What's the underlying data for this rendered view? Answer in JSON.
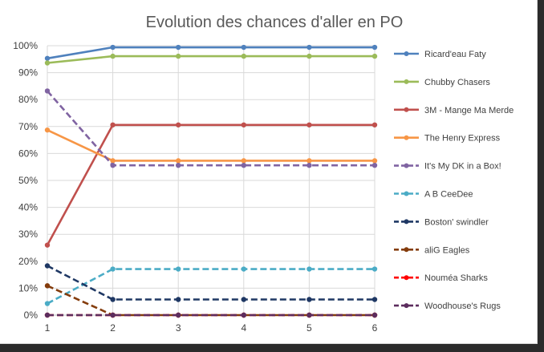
{
  "chart_data": {
    "type": "line",
    "title": "Evolution des chances d'aller en PO",
    "xlabel": "",
    "ylabel": "",
    "x": [
      1,
      2,
      3,
      4,
      5,
      6
    ],
    "x_tick_labels": [
      "1",
      "2",
      "3",
      "4",
      "5",
      "6"
    ],
    "ylim": [
      0,
      100
    ],
    "y_tick_labels": [
      "0%",
      "10%",
      "20%",
      "30%",
      "40%",
      "50%",
      "60%",
      "70%",
      "80%",
      "90%",
      "100%"
    ],
    "grid": "vertical and horizontal",
    "legend_position": "right",
    "series": [
      {
        "name": "Ricard'eau Faty",
        "color": "#4f81bd",
        "dash": "solid",
        "values": [
          95.3,
          99.4,
          99.4,
          99.4,
          99.4,
          99.4
        ]
      },
      {
        "name": "Chubby Chasers",
        "color": "#9bbb59",
        "dash": "solid",
        "values": [
          93.6,
          96.1,
          96.1,
          96.1,
          96.1,
          96.1
        ]
      },
      {
        "name": "3M - Mange Ma Merde",
        "color": "#c0504d",
        "dash": "solid",
        "values": [
          26.0,
          70.6,
          70.6,
          70.6,
          70.6,
          70.6
        ]
      },
      {
        "name": "The Henry Express",
        "color": "#f79646",
        "dash": "solid",
        "values": [
          68.7,
          57.3,
          57.3,
          57.3,
          57.3,
          57.3
        ]
      },
      {
        "name": "It's My DK in a Box!",
        "color": "#8064a2",
        "dash": "dashed",
        "values": [
          83.2,
          55.6,
          55.6,
          55.6,
          55.6,
          55.6
        ]
      },
      {
        "name": "A B CeeDee",
        "color": "#4bacc6",
        "dash": "dashed",
        "values": [
          4.3,
          17.1,
          17.1,
          17.1,
          17.1,
          17.1
        ]
      },
      {
        "name": "Boston' swindler",
        "color": "#1f3864",
        "dash": "dashed",
        "values": [
          18.3,
          5.8,
          5.8,
          5.8,
          5.8,
          5.8
        ]
      },
      {
        "name": "aliG Eagles",
        "color": "#843c0c",
        "dash": "dashed",
        "values": [
          10.9,
          0.0,
          0.0,
          0.0,
          0.0,
          0.0
        ]
      },
      {
        "name": "Nouméa Sharks",
        "color": "#ff0000",
        "dash": "dashed",
        "values": [
          0.0,
          0.0,
          0.0,
          0.0,
          0.0,
          0.0
        ]
      },
      {
        "name": "Woodhouse's Rugs",
        "color": "#5c2d5e",
        "dash": "dashed",
        "values": [
          0.0,
          0.0,
          0.0,
          0.0,
          0.0,
          0.0
        ]
      }
    ]
  }
}
